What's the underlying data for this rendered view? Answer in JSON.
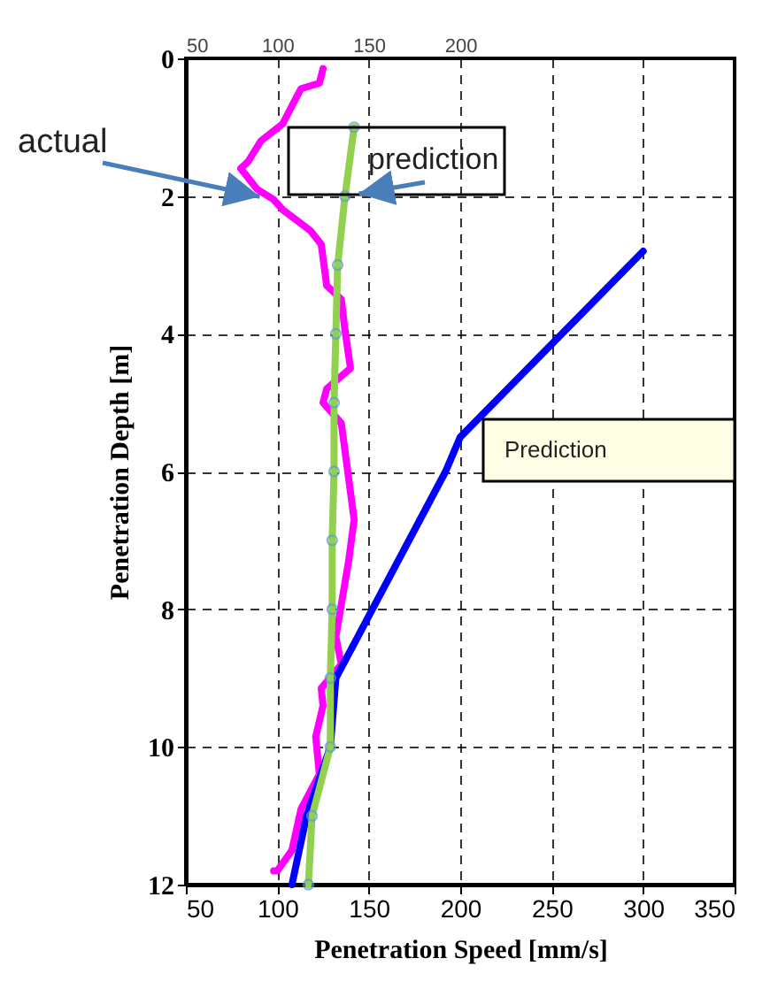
{
  "chart_data": {
    "type": "line",
    "xlabel": "Penetration Speed [mm/s]",
    "ylabel": "Penetration Depth [m]",
    "xlim": [
      50,
      350
    ],
    "xticks": [
      50,
      100,
      150,
      200,
      250,
      300,
      350
    ],
    "x2lim": [
      50,
      350
    ],
    "x2ticks": [
      50,
      100,
      150,
      200
    ],
    "ylim": [
      12,
      0
    ],
    "yticks": [
      0,
      2,
      4,
      6,
      8,
      10,
      12
    ],
    "grid": true,
    "series": [
      {
        "color": "#ff00ff",
        "marker": "none",
        "x": [
          125,
          123,
          113,
          108,
          103,
          91,
          84,
          80,
          89,
          98,
          103,
          118,
          124,
          127,
          135,
          137,
          140,
          127,
          125,
          135,
          139,
          142,
          139,
          132,
          135,
          124,
          125,
          121,
          123,
          113,
          108,
          100,
          98
        ],
        "values": [
          0.15,
          0.36,
          0.44,
          0.69,
          0.95,
          1.2,
          1.5,
          1.6,
          1.9,
          2.05,
          2.2,
          2.5,
          2.7,
          3.3,
          3.5,
          3.95,
          4.5,
          4.8,
          5.0,
          5.3,
          6.1,
          6.7,
          7.3,
          8.4,
          8.8,
          9.15,
          9.4,
          9.85,
          10.4,
          10.9,
          11.5,
          11.8,
          11.8
        ]
      },
      {
        "color": "#0000ff",
        "marker": "none",
        "x": [
          300,
          200,
          192,
          152,
          144,
          132,
          129,
          116,
          108
        ],
        "values": [
          2.8,
          5.5,
          6,
          8,
          8.4,
          9,
          10,
          11,
          12
        ]
      },
      {
        "color": "#92d050",
        "marker": "circle",
        "x": [
          142,
          137,
          133,
          132,
          131,
          131,
          130,
          130,
          129,
          129,
          119,
          117
        ],
        "values": [
          1,
          2,
          3,
          4,
          5,
          6,
          7,
          8,
          9,
          10,
          11,
          12
        ]
      }
    ],
    "annotations": [
      {
        "text": "actual",
        "x": 98,
        "y": 2.05
      },
      {
        "text": "prediction",
        "x": 137,
        "y": 2
      },
      "Prediction"
    ]
  }
}
